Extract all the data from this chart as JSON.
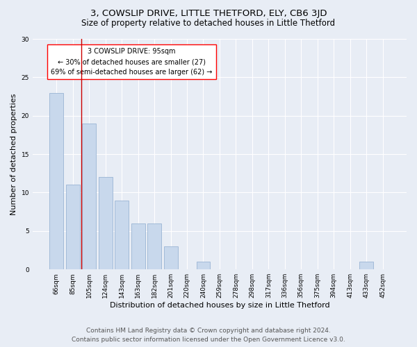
{
  "title": "3, COWSLIP DRIVE, LITTLE THETFORD, ELY, CB6 3JD",
  "subtitle": "Size of property relative to detached houses in Little Thetford",
  "xlabel": "Distribution of detached houses by size in Little Thetford",
  "ylabel": "Number of detached properties",
  "categories": [
    "66sqm",
    "85sqm",
    "105sqm",
    "124sqm",
    "143sqm",
    "163sqm",
    "182sqm",
    "201sqm",
    "220sqm",
    "240sqm",
    "259sqm",
    "278sqm",
    "298sqm",
    "317sqm",
    "336sqm",
    "356sqm",
    "375sqm",
    "394sqm",
    "413sqm",
    "433sqm",
    "452sqm"
  ],
  "values": [
    23,
    11,
    19,
    12,
    9,
    6,
    6,
    3,
    0,
    1,
    0,
    0,
    0,
    0,
    0,
    0,
    0,
    0,
    0,
    1,
    0
  ],
  "bar_color": "#c8d8ec",
  "bar_edge_color": "#9ab4d4",
  "vline_x_idx": 1.5,
  "vline_color": "#cc0000",
  "annotation_lines": [
    "3 COWSLIP DRIVE: 95sqm",
    "← 30% of detached houses are smaller (27)",
    "69% of semi-detached houses are larger (62) →"
  ],
  "ylim": [
    0,
    30
  ],
  "yticks": [
    0,
    5,
    10,
    15,
    20,
    25,
    30
  ],
  "footnote1": "Contains HM Land Registry data © Crown copyright and database right 2024.",
  "footnote2": "Contains public sector information licensed under the Open Government Licence v3.0.",
  "bg_color": "#e8edf5",
  "plot_bg_color": "#e8edf5",
  "title_fontsize": 9.5,
  "subtitle_fontsize": 8.5,
  "xlabel_fontsize": 8,
  "ylabel_fontsize": 8,
  "tick_fontsize": 6.5,
  "annotation_fontsize": 7,
  "footnote_fontsize": 6.5
}
